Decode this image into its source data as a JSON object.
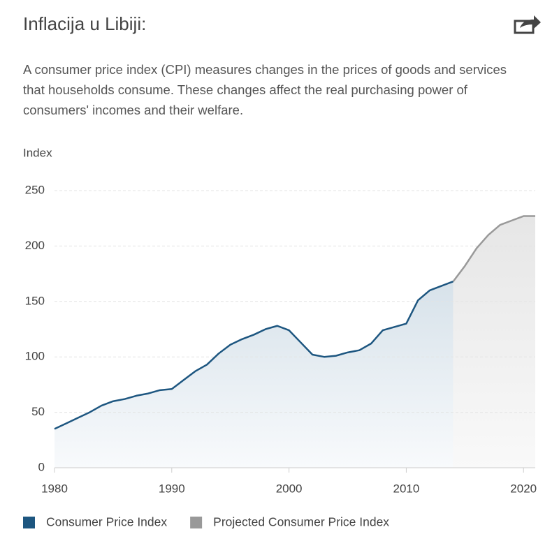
{
  "chart_data": {
    "type": "line",
    "title": "Inflacija u Libiji:",
    "description": "A consumer price index (CPI) measures changes in the prices of goods and services that households consume. These changes affect the real purchasing power of consumers' incomes and their welfare.",
    "y_label": "Index",
    "xlim": [
      1980,
      2021
    ],
    "xticks": [
      1980,
      1990,
      2000,
      2010,
      2020
    ],
    "ylim": [
      0,
      250
    ],
    "yticks": [
      0,
      50,
      100,
      150,
      200,
      250
    ],
    "grid": true,
    "series": [
      {
        "name": "Consumer Price Index",
        "color": "#1d5680",
        "x": [
          1980,
          1981,
          1982,
          1983,
          1984,
          1985,
          1986,
          1987,
          1988,
          1989,
          1990,
          1991,
          1992,
          1993,
          1994,
          1995,
          1996,
          1997,
          1998,
          1999,
          2000,
          2001,
          2002,
          2003,
          2004,
          2005,
          2006,
          2007,
          2008,
          2009,
          2010,
          2011,
          2012,
          2013,
          2014
        ],
        "values": [
          35,
          40,
          45,
          50,
          56,
          60,
          62,
          65,
          67,
          70,
          71,
          79,
          87,
          93,
          103,
          111,
          116,
          120,
          125,
          128,
          124,
          113,
          102,
          100,
          101,
          104,
          106,
          112,
          124,
          127,
          130,
          151,
          160,
          164,
          168
        ]
      },
      {
        "name": "Projected Consumer Price Index",
        "color": "#999999",
        "x": [
          2014,
          2015,
          2016,
          2017,
          2018,
          2019,
          2020,
          2021
        ],
        "values": [
          168,
          182,
          198,
          210,
          219,
          223,
          227,
          227
        ]
      }
    ]
  }
}
